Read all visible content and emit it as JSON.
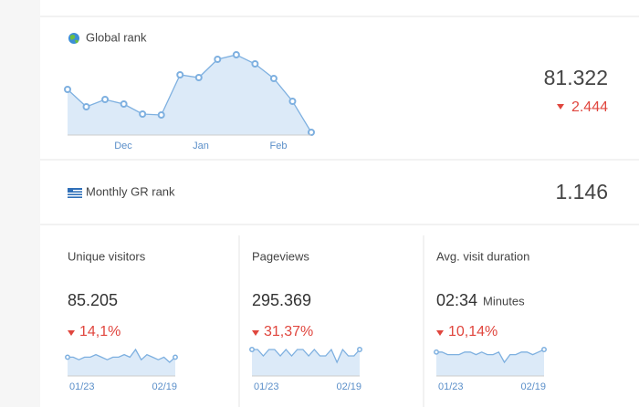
{
  "global_rank": {
    "label": "Global rank",
    "value": "81.322",
    "change": "2.444",
    "chart": {
      "type": "line",
      "x_labels": [
        "Dec",
        "Jan",
        "Feb"
      ],
      "values": [
        50,
        31,
        39,
        34,
        23,
        22,
        66,
        63,
        83,
        88,
        78,
        62,
        37,
        3
      ],
      "color": "#7eb0e0"
    }
  },
  "monthly_rank": {
    "label": "Monthly GR rank",
    "value": "1.146"
  },
  "metrics": [
    {
      "label": "Unique visitors",
      "value": "85.205",
      "change": "14,1%",
      "start": "01/23",
      "end": "02/19",
      "values": [
        5,
        5,
        4,
        5,
        5,
        6,
        5,
        4,
        5,
        5,
        6,
        5,
        8,
        4,
        6,
        5,
        4,
        5,
        3,
        5
      ]
    },
    {
      "label": "Pageviews",
      "value": "295.369",
      "change": "31,37%",
      "start": "01/23",
      "end": "02/19",
      "values": [
        6,
        6,
        5,
        6,
        6,
        5,
        6,
        5,
        6,
        6,
        5,
        6,
        5,
        5,
        6,
        4,
        6,
        5,
        5,
        6
      ]
    },
    {
      "label": "Avg. visit duration",
      "value": "02:34",
      "unit": "Minutes",
      "change": "10,14%",
      "start": "01/23",
      "end": "02/19",
      "values": [
        6,
        6,
        5,
        5,
        5,
        6,
        6,
        5,
        6,
        5,
        5,
        6,
        2,
        5,
        5,
        6,
        6,
        5,
        6,
        7
      ]
    }
  ]
}
